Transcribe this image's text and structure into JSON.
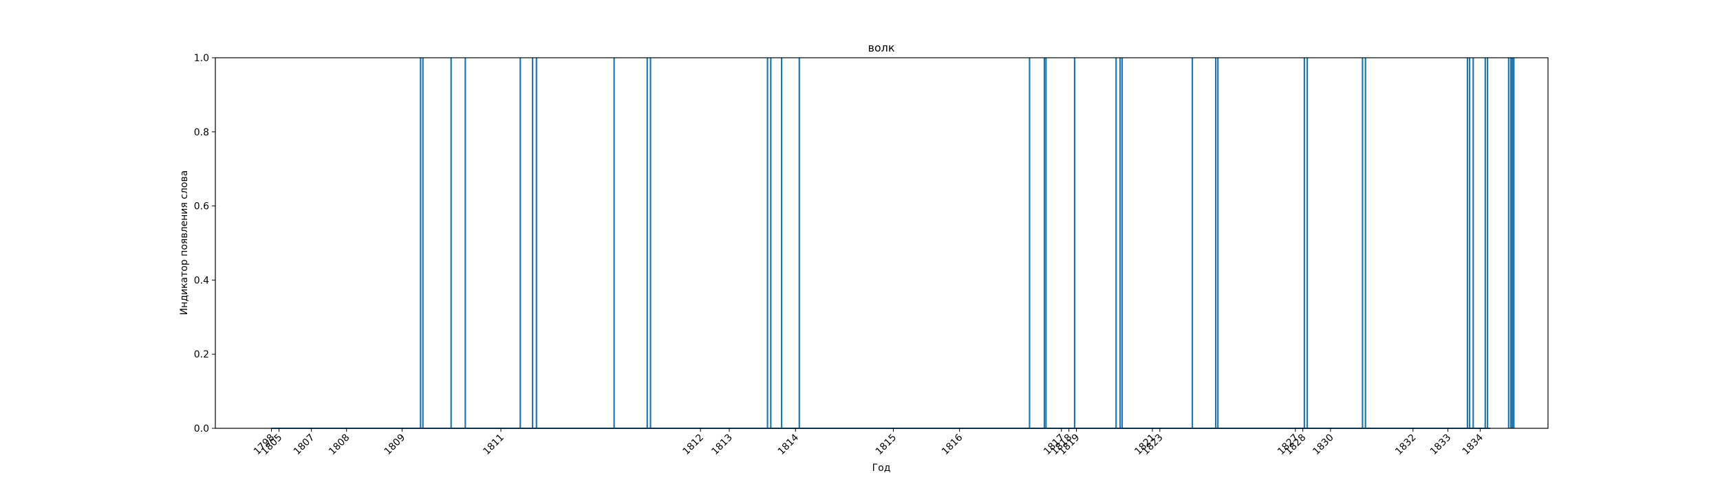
{
  "chart_data": {
    "type": "line",
    "title": "волк",
    "xlabel": "Год",
    "ylabel": "Индикатор появления слова",
    "ylim": [
      0,
      1.0
    ],
    "yticks": [
      "0.0",
      "0.2",
      "0.4",
      "0.6",
      "0.8",
      "1.0"
    ],
    "xticks": [
      {
        "label": "1798",
        "x": 0.0
      },
      {
        "label": "1805",
        "x": 0.74
      },
      {
        "label": "1807",
        "x": 3.91
      },
      {
        "label": "1808",
        "x": 7.35
      },
      {
        "label": "1809",
        "x": 12.78
      },
      {
        "label": "1811",
        "x": 22.45
      },
      {
        "label": "1812",
        "x": 41.98
      },
      {
        "label": "1813",
        "x": 44.8
      },
      {
        "label": "1814",
        "x": 51.28
      },
      {
        "label": "1815",
        "x": 60.85
      },
      {
        "label": "1816",
        "x": 67.33
      },
      {
        "label": "1817",
        "x": 77.3
      },
      {
        "label": "1818",
        "x": 78.03
      },
      {
        "label": "1819",
        "x": 78.77
      },
      {
        "label": "1821",
        "x": 86.2
      },
      {
        "label": "1823",
        "x": 86.93
      },
      {
        "label": "1827",
        "x": 100.19
      },
      {
        "label": "1828",
        "x": 100.92
      },
      {
        "label": "1830",
        "x": 103.63
      },
      {
        "label": "1832",
        "x": 111.7
      },
      {
        "label": "1833",
        "x": 115.11
      },
      {
        "label": "1834",
        "x": 118.27
      }
    ],
    "xlim": [
      -5.49,
      124.91
    ],
    "grid": false,
    "legend": "none",
    "color": "#1f77b4",
    "events": [
      14.59,
      14.82,
      17.58,
      18.97,
      24.35,
      25.55,
      25.93,
      33.53,
      36.77,
      37.09,
      48.54,
      48.86,
      49.92,
      51.65,
      74.18,
      75.63,
      75.79,
      78.59,
      82.65,
      83.04,
      83.24,
      90.11,
      92.4,
      92.61,
      101.07,
      101.35,
      106.76,
      107.05,
      117.03,
      117.24,
      117.59,
      118.77,
      118.99,
      121.06,
      121.27,
      121.33,
      121.46,
      121.57
    ]
  }
}
